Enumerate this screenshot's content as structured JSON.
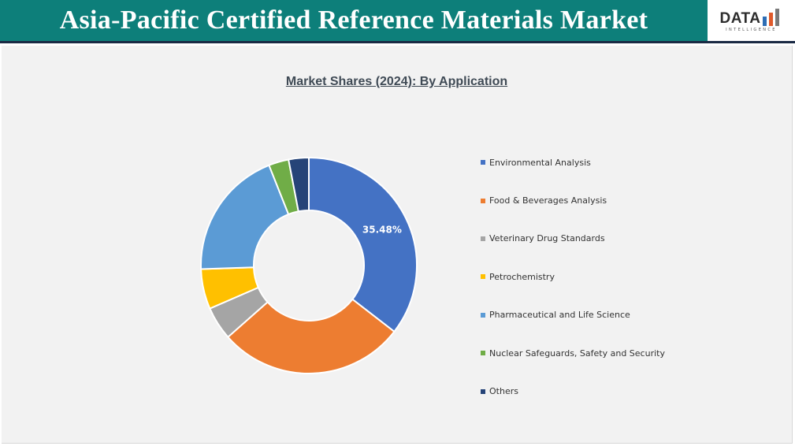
{
  "header": {
    "title": "Asia-Pacific Certified Reference Materials Market",
    "background": "#0d7f7a"
  },
  "logo": {
    "wordmark": "DATA",
    "tagline": "INTELLIGENCE",
    "bar_colors": [
      "#2d6db5",
      "#e05a2b",
      "#7a7a7a"
    ]
  },
  "chart_data": {
    "type": "pie",
    "subtype": "donut",
    "title": "Market Shares (2024): By Application",
    "legend_position": "right",
    "series": [
      {
        "name": "Environmental Analysis",
        "value": 35.48,
        "color": "#4472c4",
        "label": "35.48%"
      },
      {
        "name": "Food & Beverages Analysis",
        "value": 28.0,
        "color": "#ed7d31",
        "label": ""
      },
      {
        "name": "Veterinary Drug Standards",
        "value": 5.0,
        "color": "#a5a5a5",
        "label": ""
      },
      {
        "name": "Petrochemistry",
        "value": 6.0,
        "color": "#ffc000",
        "label": ""
      },
      {
        "name": "Pharmaceutical and Life Science",
        "value": 19.5,
        "color": "#5b9bd5",
        "label": ""
      },
      {
        "name": "Nuclear Safeguards, Safety and Security",
        "value": 3.0,
        "color": "#70ad47",
        "label": ""
      },
      {
        "name": "Others",
        "value": 3.02,
        "color": "#264478",
        "label": ""
      }
    ]
  }
}
